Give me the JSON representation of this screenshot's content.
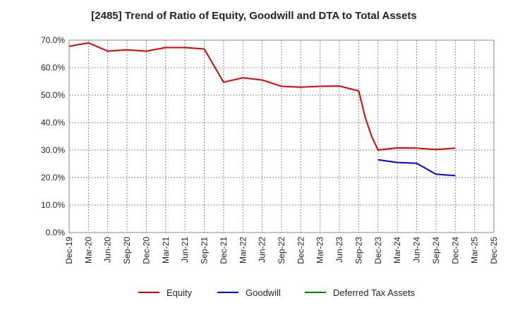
{
  "chart_data": {
    "type": "line",
    "title": "[2485]  Trend of Ratio of Equity, Goodwill and DTA to Total Assets",
    "xlabel": "",
    "ylabel": "",
    "ylim": [
      0,
      70
    ],
    "y_ticks": [
      "0.0%",
      "10.0%",
      "20.0%",
      "30.0%",
      "40.0%",
      "50.0%",
      "60.0%",
      "70.0%"
    ],
    "y_tick_values": [
      0,
      10,
      20,
      30,
      40,
      50,
      60,
      70
    ],
    "x_ticks": [
      "Dec-19",
      "Mar-20",
      "Jun-20",
      "Sep-20",
      "Dec-20",
      "Mar-21",
      "Jun-21",
      "Sep-21",
      "Dec-21",
      "Mar-22",
      "Jun-22",
      "Sep-22",
      "Dec-22",
      "Mar-23",
      "Jun-23",
      "Sep-23",
      "Dec-23",
      "Mar-24",
      "Jun-24",
      "Sep-24",
      "Dec-24",
      "Mar-25",
      "Dec-25"
    ],
    "grid": true,
    "legend_position": "bottom",
    "series": [
      {
        "name": "Equity",
        "color": "#dd0000",
        "points": [
          [
            0,
            67.8
          ],
          [
            1,
            69.0
          ],
          [
            2,
            66.0
          ],
          [
            3,
            66.5
          ],
          [
            4,
            66.0
          ],
          [
            5,
            67.3
          ],
          [
            6,
            67.3
          ],
          [
            7,
            66.8
          ],
          [
            8,
            54.7
          ],
          [
            9,
            56.3
          ],
          [
            10,
            55.5
          ],
          [
            11,
            53.2
          ],
          [
            12,
            52.9
          ],
          [
            13,
            53.2
          ],
          [
            14,
            53.3
          ],
          [
            15,
            51.5
          ],
          [
            15.33,
            42.0
          ],
          [
            15.67,
            35.0
          ],
          [
            16,
            30.0
          ],
          [
            17,
            30.8
          ],
          [
            18,
            30.7
          ],
          [
            19,
            30.2
          ],
          [
            20,
            30.7
          ]
        ]
      },
      {
        "name": "Goodwill",
        "color": "#0000dd",
        "points": [
          [
            16,
            26.5
          ],
          [
            17,
            25.5
          ],
          [
            18,
            25.2
          ],
          [
            19,
            21.2
          ],
          [
            20,
            20.7
          ]
        ]
      },
      {
        "name": "Deferred Tax Assets",
        "color": "#008000",
        "points": []
      }
    ]
  }
}
